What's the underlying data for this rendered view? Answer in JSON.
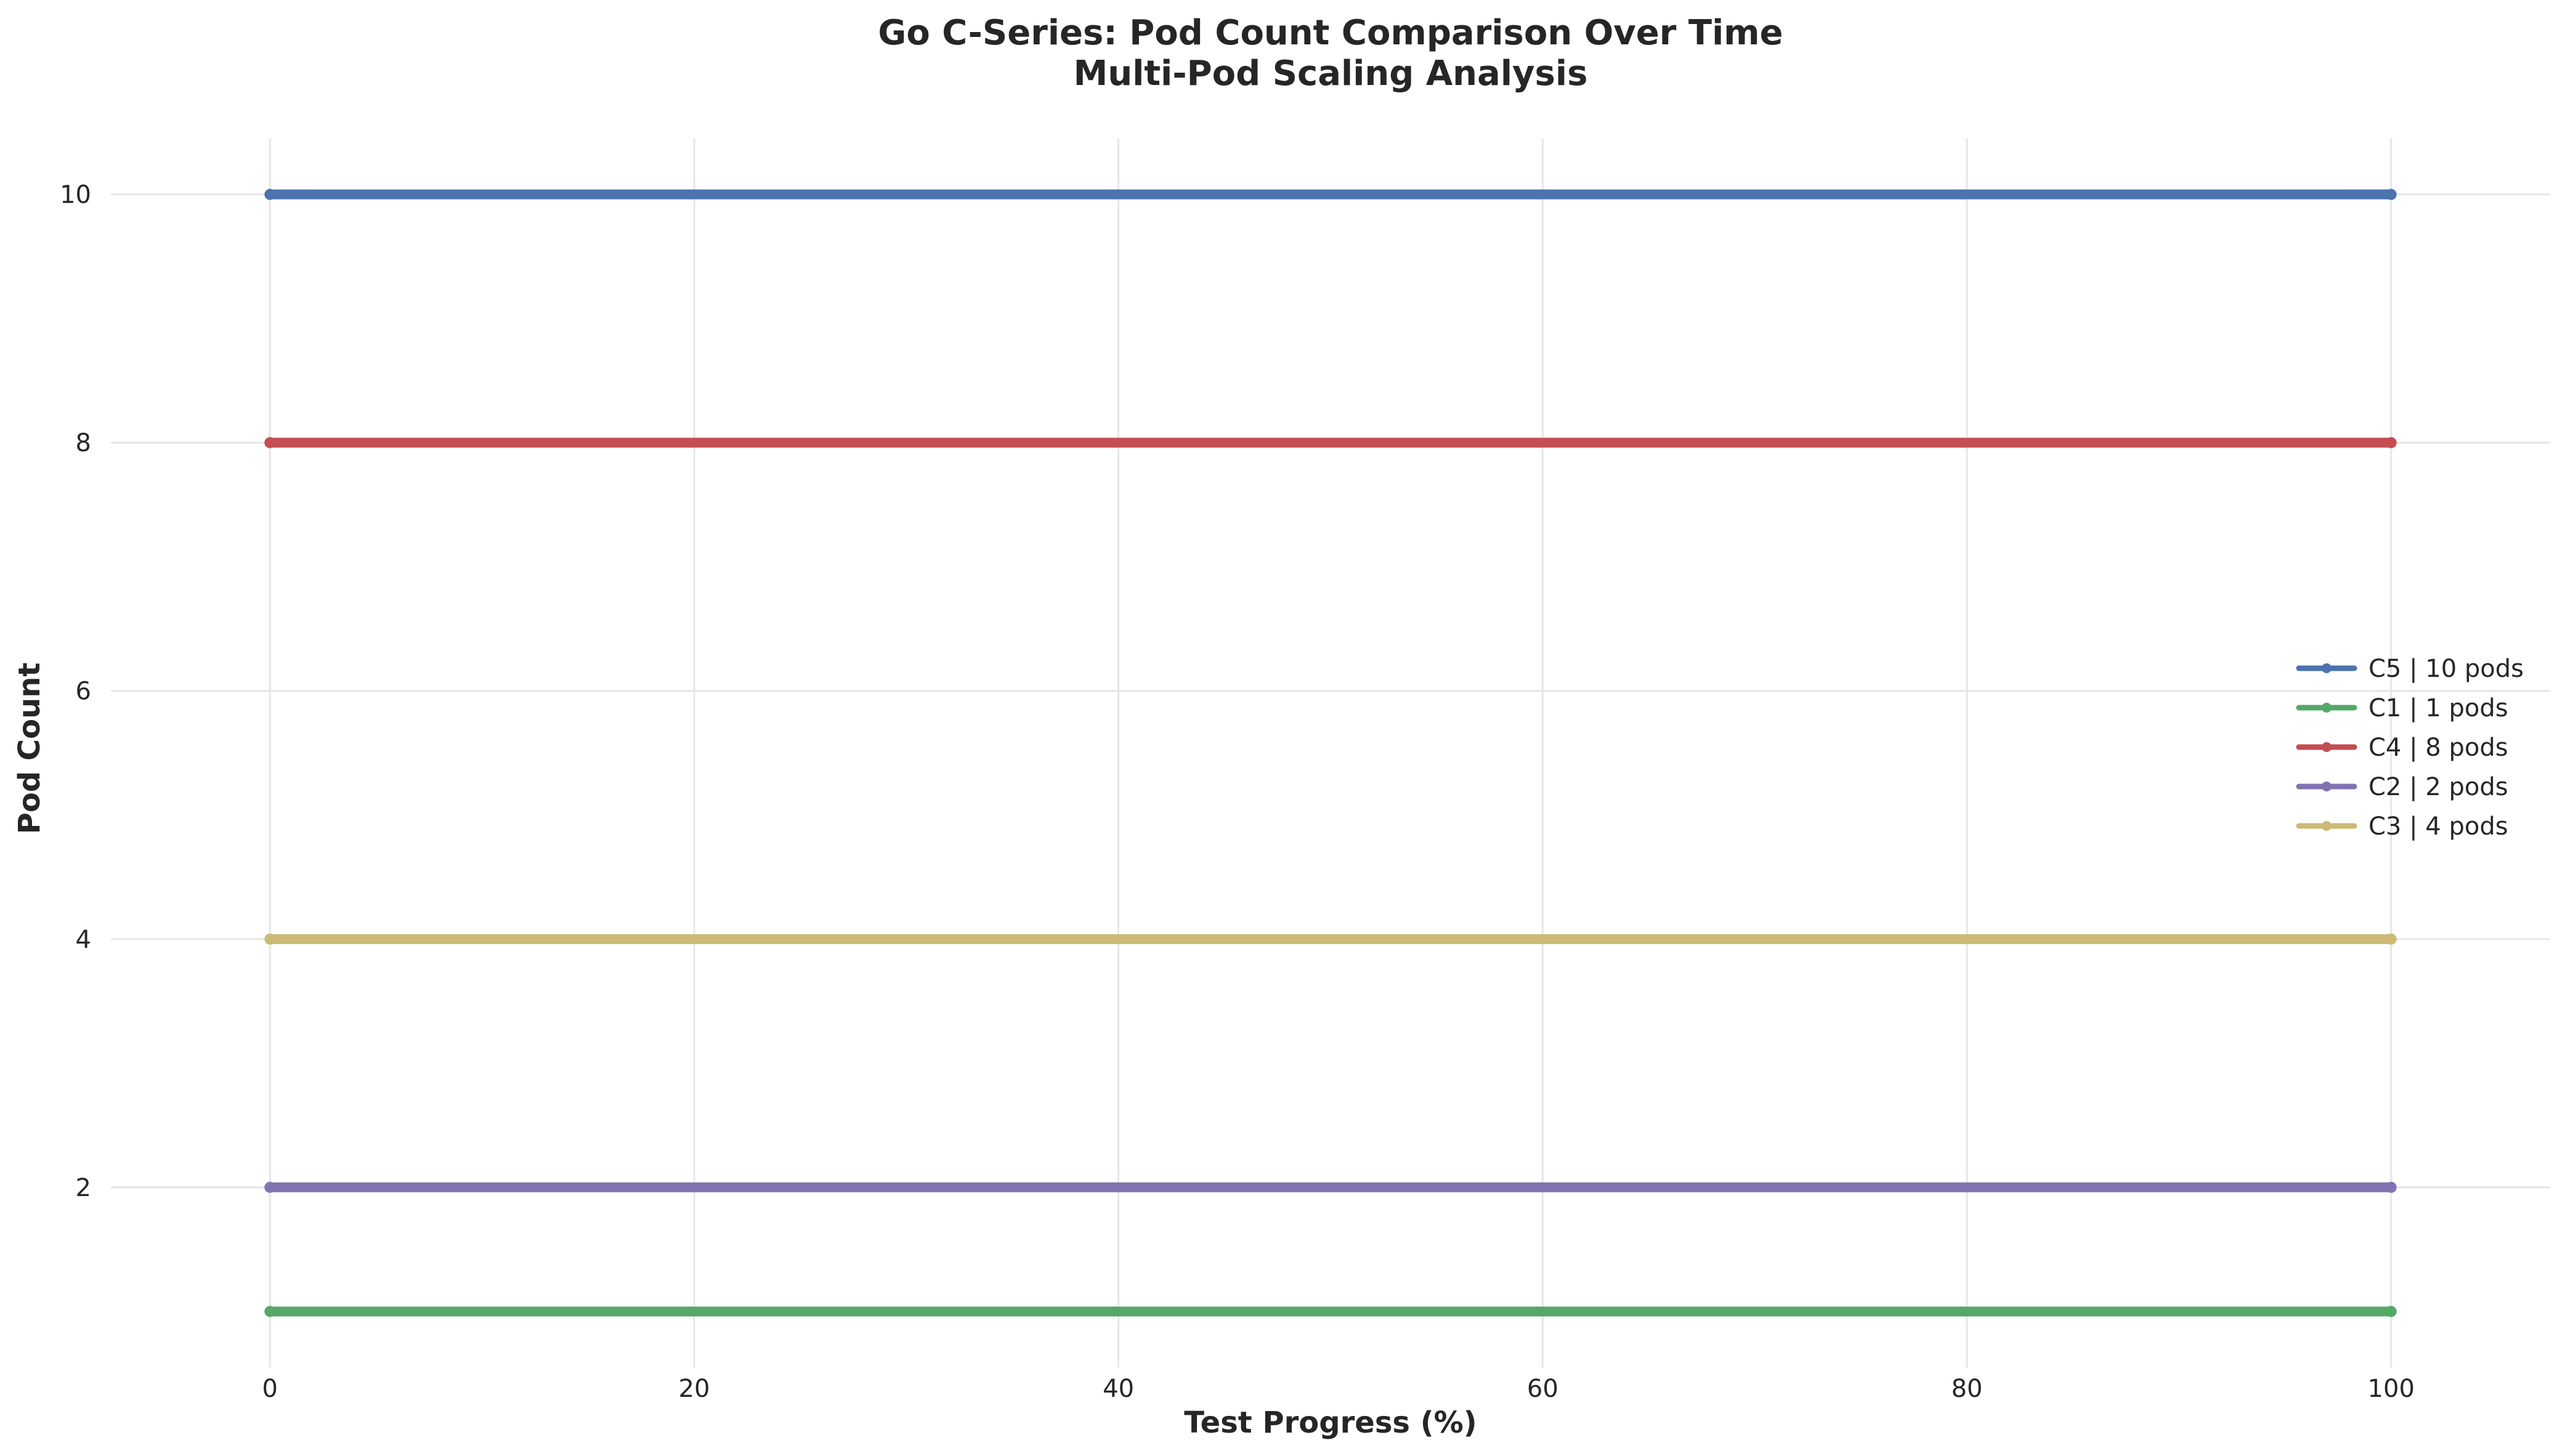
{
  "chart_data": {
    "type": "line",
    "title": "Go C-Series: Pod Count Comparison Over Time",
    "subtitle": "Multi-Pod Scaling Analysis",
    "xlabel": "Test Progress (%)",
    "ylabel": "Pod Count",
    "xlim": [
      -7.5,
      107.5
    ],
    "ylim": [
      0.55,
      10.45
    ],
    "x_ticks": [
      0,
      20,
      40,
      60,
      80,
      100
    ],
    "y_ticks": [
      2,
      4,
      6,
      8,
      10
    ],
    "grid": true,
    "legend_position": "center-right",
    "x": [
      0,
      100
    ],
    "series": [
      {
        "name": "C5 | 10 pods",
        "values": [
          10,
          10
        ],
        "color": "#4c72b0"
      },
      {
        "name": "C1 | 1 pods",
        "values": [
          1,
          1
        ],
        "color": "#55a868"
      },
      {
        "name": "C4 | 8 pods",
        "values": [
          8,
          8
        ],
        "color": "#c44e52"
      },
      {
        "name": "C2 | 2 pods",
        "values": [
          2,
          2
        ],
        "color": "#8172b2"
      },
      {
        "name": "C3 | 4 pods",
        "values": [
          4,
          4
        ],
        "color": "#ccb974"
      }
    ]
  }
}
